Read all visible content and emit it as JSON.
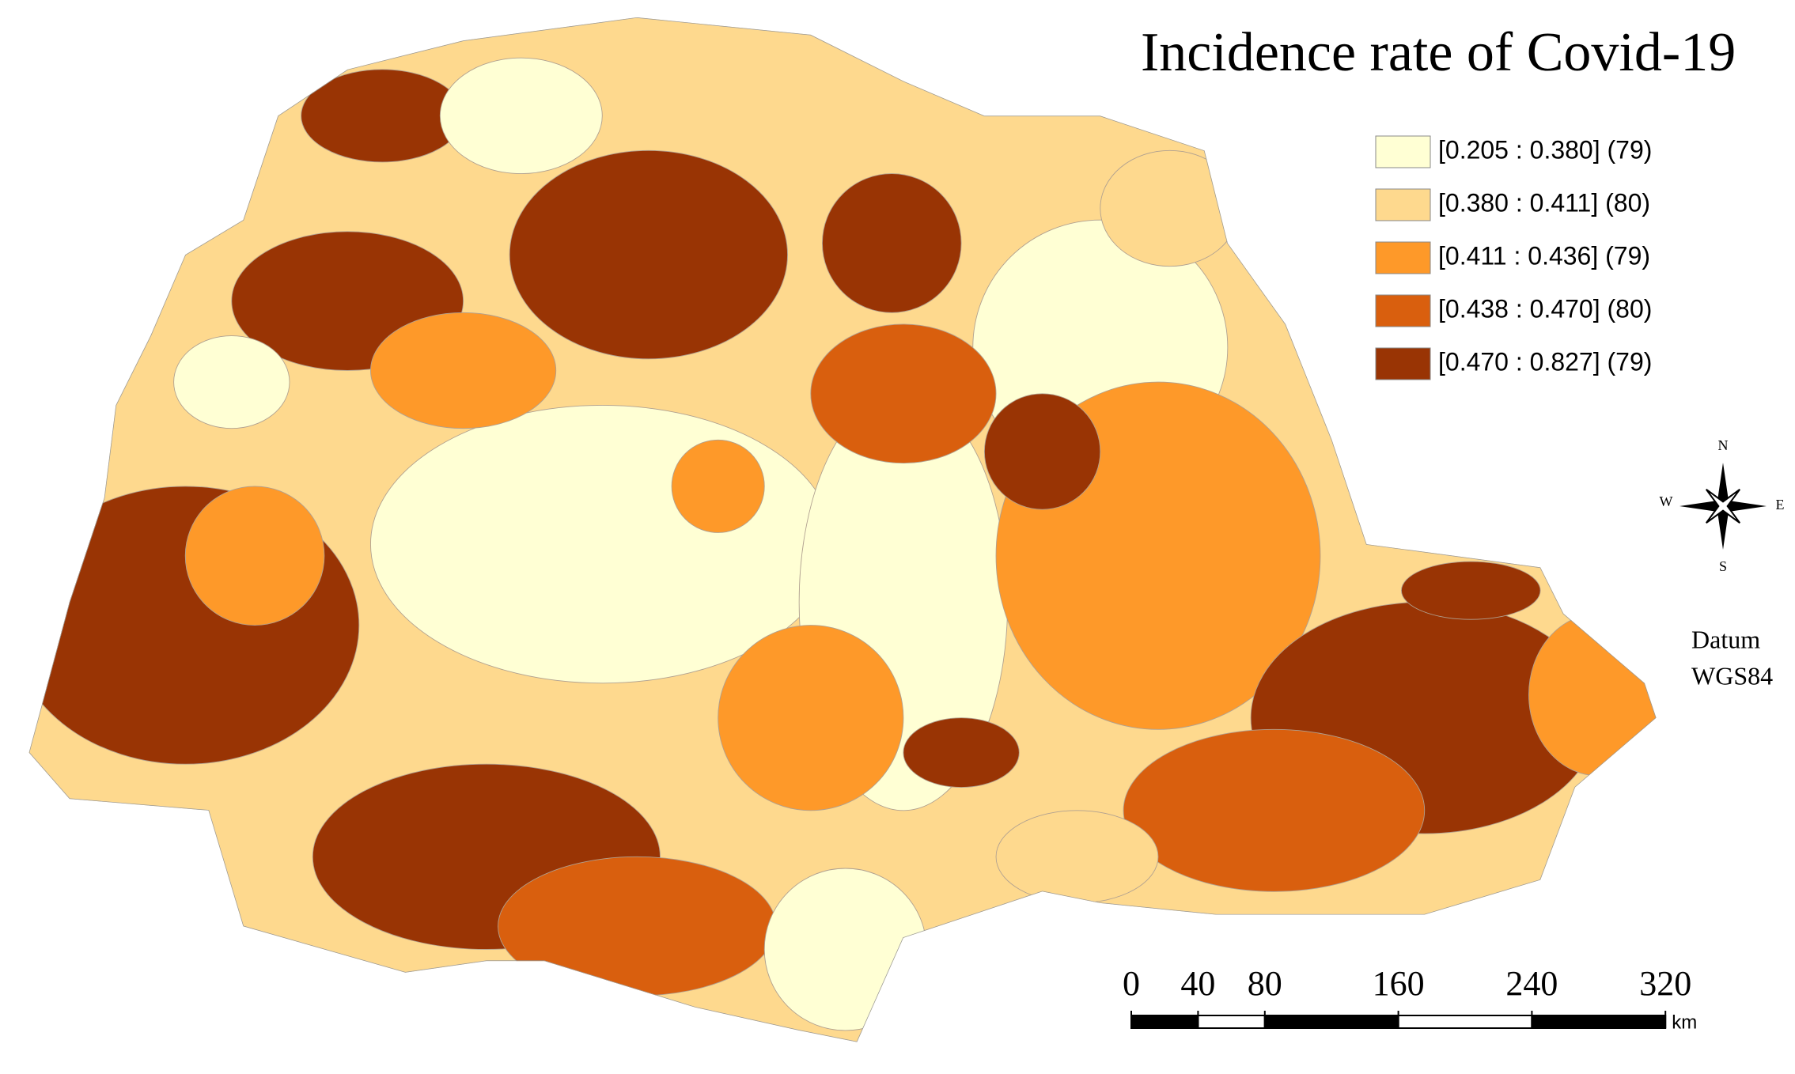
{
  "title": "Incidence rate of Covid-19",
  "legend": [
    {
      "label": "[0.205 : 0.380] (79)",
      "color": "#ffffd4"
    },
    {
      "label": "[0.380 : 0.411] (80)",
      "color": "#fed98e"
    },
    {
      "label": "[0.411 : 0.436] (79)",
      "color": "#fe9929"
    },
    {
      "label": "[0.438 : 0.470] (80)",
      "color": "#d95f0e"
    },
    {
      "label": "[0.470 : 0.827] (79)",
      "color": "#993404"
    }
  ],
  "compass": {
    "north": "N",
    "east": "E",
    "south": "S",
    "west": "W"
  },
  "datum": [
    "Datum",
    "WGS84"
  ],
  "scale_bar": {
    "ticks": [
      0,
      40,
      80,
      160,
      240,
      320
    ],
    "unit": "km"
  }
}
